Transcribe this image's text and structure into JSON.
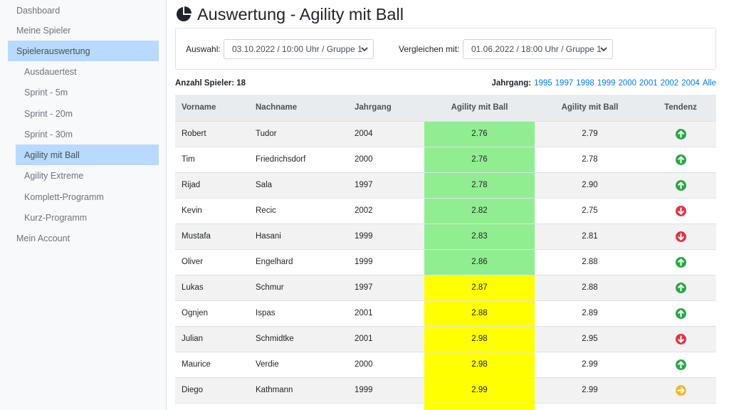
{
  "sidebar": {
    "items": [
      {
        "label": "Dashboard",
        "level": "top",
        "active": false
      },
      {
        "label": "Meine Spieler",
        "level": "top",
        "active": false
      },
      {
        "label": "Spielerauswertung",
        "level": "top",
        "active": true
      },
      {
        "label": "Ausdauertest",
        "level": "sub",
        "active": false
      },
      {
        "label": "Sprint - 5m",
        "level": "sub",
        "active": false
      },
      {
        "label": "Sprint - 20m",
        "level": "sub",
        "active": false
      },
      {
        "label": "Sprint - 30m",
        "level": "sub",
        "active": false
      },
      {
        "label": "Agility mit Ball",
        "level": "sub",
        "active": true
      },
      {
        "label": "Agility Extreme",
        "level": "sub",
        "active": false
      },
      {
        "label": "Komplett-Programm",
        "level": "sub",
        "active": false
      },
      {
        "label": "Kurz-Programm",
        "level": "sub",
        "active": false
      },
      {
        "label": "Mein Account",
        "level": "top",
        "active": false
      }
    ]
  },
  "header": {
    "title": "Auswertung - Agility mit Ball",
    "icon": "pie-chart-icon"
  },
  "filters": {
    "auswahl_label": "Auswahl:",
    "auswahl_value": "03.10.2022 / 10:00 Uhr / Gruppe 1",
    "vergleich_label": "Vergleichen mit:",
    "vergleich_value": "01.06.2022 / 18:00 Uhr / Gruppe 1"
  },
  "summary": {
    "count_text": "Anzahl Spieler: 18",
    "jahrgang_label": "Jahrgang:",
    "jahrgang_links": [
      "1995",
      "1997",
      "1998",
      "1999",
      "2000",
      "2001",
      "2002",
      "2004",
      "Alle"
    ]
  },
  "table": {
    "headers": [
      "Vorname",
      "Nachname",
      "Jahrgang",
      "Agility mit Ball",
      "Agility mit Ball",
      "Tendenz"
    ],
    "rows": [
      {
        "vorname": "Robert",
        "nachname": "Tudor",
        "jahrgang": "2004",
        "score": "2.76",
        "compare": "2.79",
        "score_color": "green",
        "trend": "up"
      },
      {
        "vorname": "Tim",
        "nachname": "Friedrichsdorf",
        "jahrgang": "2000",
        "score": "2.76",
        "compare": "2.78",
        "score_color": "green",
        "trend": "up"
      },
      {
        "vorname": "Rijad",
        "nachname": "Sala",
        "jahrgang": "1997",
        "score": "2.78",
        "compare": "2.90",
        "score_color": "green",
        "trend": "up"
      },
      {
        "vorname": "Kevin",
        "nachname": "Recic",
        "jahrgang": "2002",
        "score": "2.82",
        "compare": "2.75",
        "score_color": "green",
        "trend": "down"
      },
      {
        "vorname": "Mustafa",
        "nachname": "Hasani",
        "jahrgang": "1999",
        "score": "2.83",
        "compare": "2.81",
        "score_color": "green",
        "trend": "down"
      },
      {
        "vorname": "Oliver",
        "nachname": "Engelhard",
        "jahrgang": "1999",
        "score": "2.86",
        "compare": "2.88",
        "score_color": "green",
        "trend": "up"
      },
      {
        "vorname": "Lukas",
        "nachname": "Schmur",
        "jahrgang": "1997",
        "score": "2.87",
        "compare": "2.88",
        "score_color": "yellow",
        "trend": "up"
      },
      {
        "vorname": "Ognjen",
        "nachname": "Ispas",
        "jahrgang": "2001",
        "score": "2.88",
        "compare": "2.89",
        "score_color": "yellow",
        "trend": "up"
      },
      {
        "vorname": "Julian",
        "nachname": "Schmidtke",
        "jahrgang": "2001",
        "score": "2.98",
        "compare": "2.95",
        "score_color": "yellow",
        "trend": "down"
      },
      {
        "vorname": "Maurice",
        "nachname": "Verdie",
        "jahrgang": "2000",
        "score": "2.98",
        "compare": "2.99",
        "score_color": "yellow",
        "trend": "up"
      },
      {
        "vorname": "Diego",
        "nachname": "Kathmann",
        "jahrgang": "1999",
        "score": "2.99",
        "compare": "2.99",
        "score_color": "yellow",
        "trend": "same"
      },
      {
        "vorname": "",
        "nachname": "",
        "jahrgang": "",
        "score": "",
        "compare": "",
        "score_color": "yellow",
        "trend": "partial"
      }
    ]
  },
  "colors": {
    "green_cell": "#90ee90",
    "yellow_cell": "#ffff00",
    "trend_up": "#28a745",
    "trend_down": "#dc3545",
    "trend_same": "#f5b82e",
    "link": "#007bff",
    "active_nav": "#b8daff"
  }
}
